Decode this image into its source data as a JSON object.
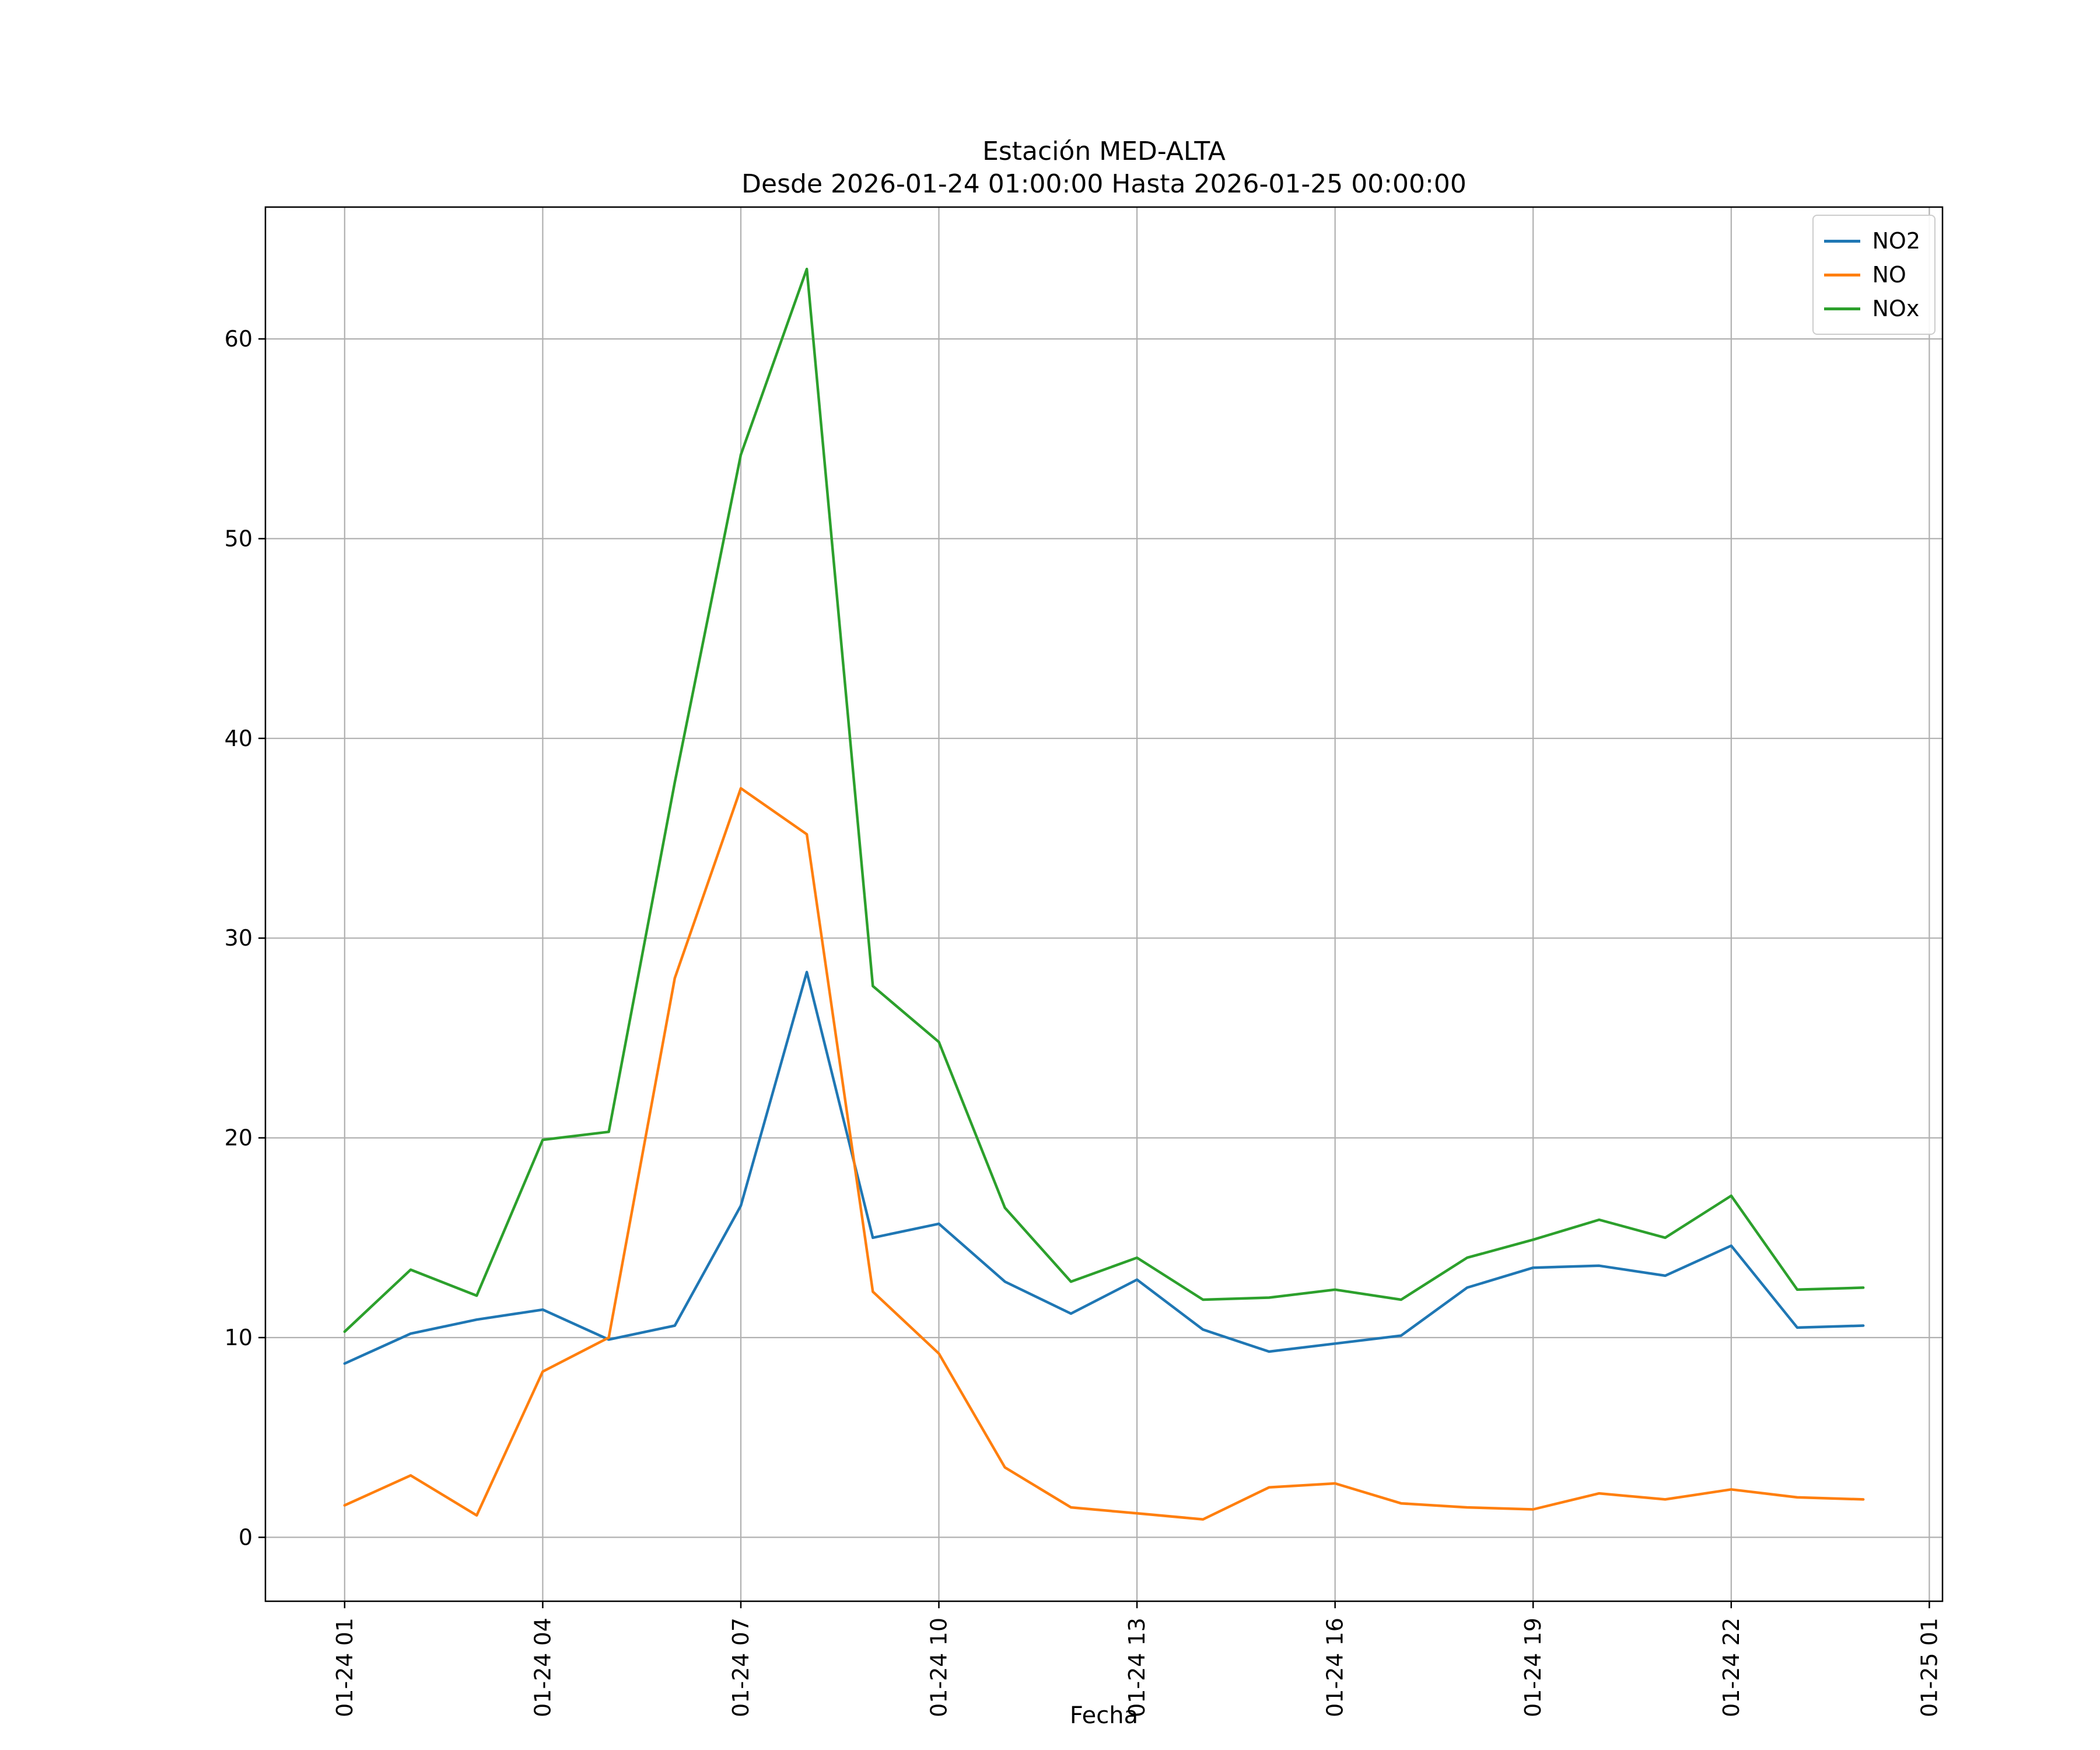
{
  "chart_data": {
    "type": "line",
    "title_lines": [
      "Estación MED-ALTA",
      "Desde 2026-01-24 01:00:00 Hasta 2026-01-25 00:00:00"
    ],
    "xlabel": "Fecha",
    "ylabel": "",
    "grid": true,
    "legend_position": "upper right",
    "xlim": [
      -0.2,
      25.2
    ],
    "ylim": [
      -3.2,
      66.6
    ],
    "x_hours": [
      1,
      2,
      3,
      4,
      5,
      6,
      7,
      8,
      9,
      10,
      11,
      12,
      13,
      14,
      15,
      16,
      17,
      18,
      19,
      20,
      21,
      22,
      23,
      24
    ],
    "xticks": {
      "positions": [
        1,
        4,
        7,
        10,
        13,
        16,
        19,
        22,
        25
      ],
      "labels": [
        "01-24 01",
        "01-24 04",
        "01-24 07",
        "01-24 10",
        "01-24 13",
        "01-24 16",
        "01-24 19",
        "01-24 22",
        "01-25 01"
      ]
    },
    "yticks": [
      0,
      10,
      20,
      30,
      40,
      50,
      60
    ],
    "series": [
      {
        "name": "NO2",
        "color": "#1f77b4",
        "values": [
          8.7,
          10.2,
          10.9,
          11.4,
          9.9,
          10.6,
          16.6,
          28.3,
          15.0,
          15.7,
          12.8,
          11.2,
          12.9,
          10.4,
          9.3,
          9.7,
          10.1,
          12.5,
          13.5,
          13.6,
          13.1,
          14.6,
          10.5,
          10.6
        ]
      },
      {
        "name": "NO",
        "color": "#ff7f0e",
        "values": [
          1.6,
          3.1,
          1.1,
          8.3,
          10.0,
          28.0,
          37.5,
          35.2,
          12.3,
          9.2,
          3.5,
          1.5,
          1.2,
          0.9,
          2.5,
          2.7,
          1.7,
          1.5,
          1.4,
          2.2,
          1.9,
          2.4,
          2.0,
          1.9
        ]
      },
      {
        "name": "NOx",
        "color": "#2ca02c",
        "values": [
          10.3,
          13.4,
          12.1,
          19.9,
          20.3,
          37.8,
          54.2,
          63.5,
          27.6,
          24.8,
          16.5,
          12.8,
          14.0,
          11.9,
          12.0,
          12.4,
          11.9,
          14.0,
          14.9,
          15.9,
          15.0,
          17.1,
          12.4,
          12.5
        ]
      }
    ]
  }
}
